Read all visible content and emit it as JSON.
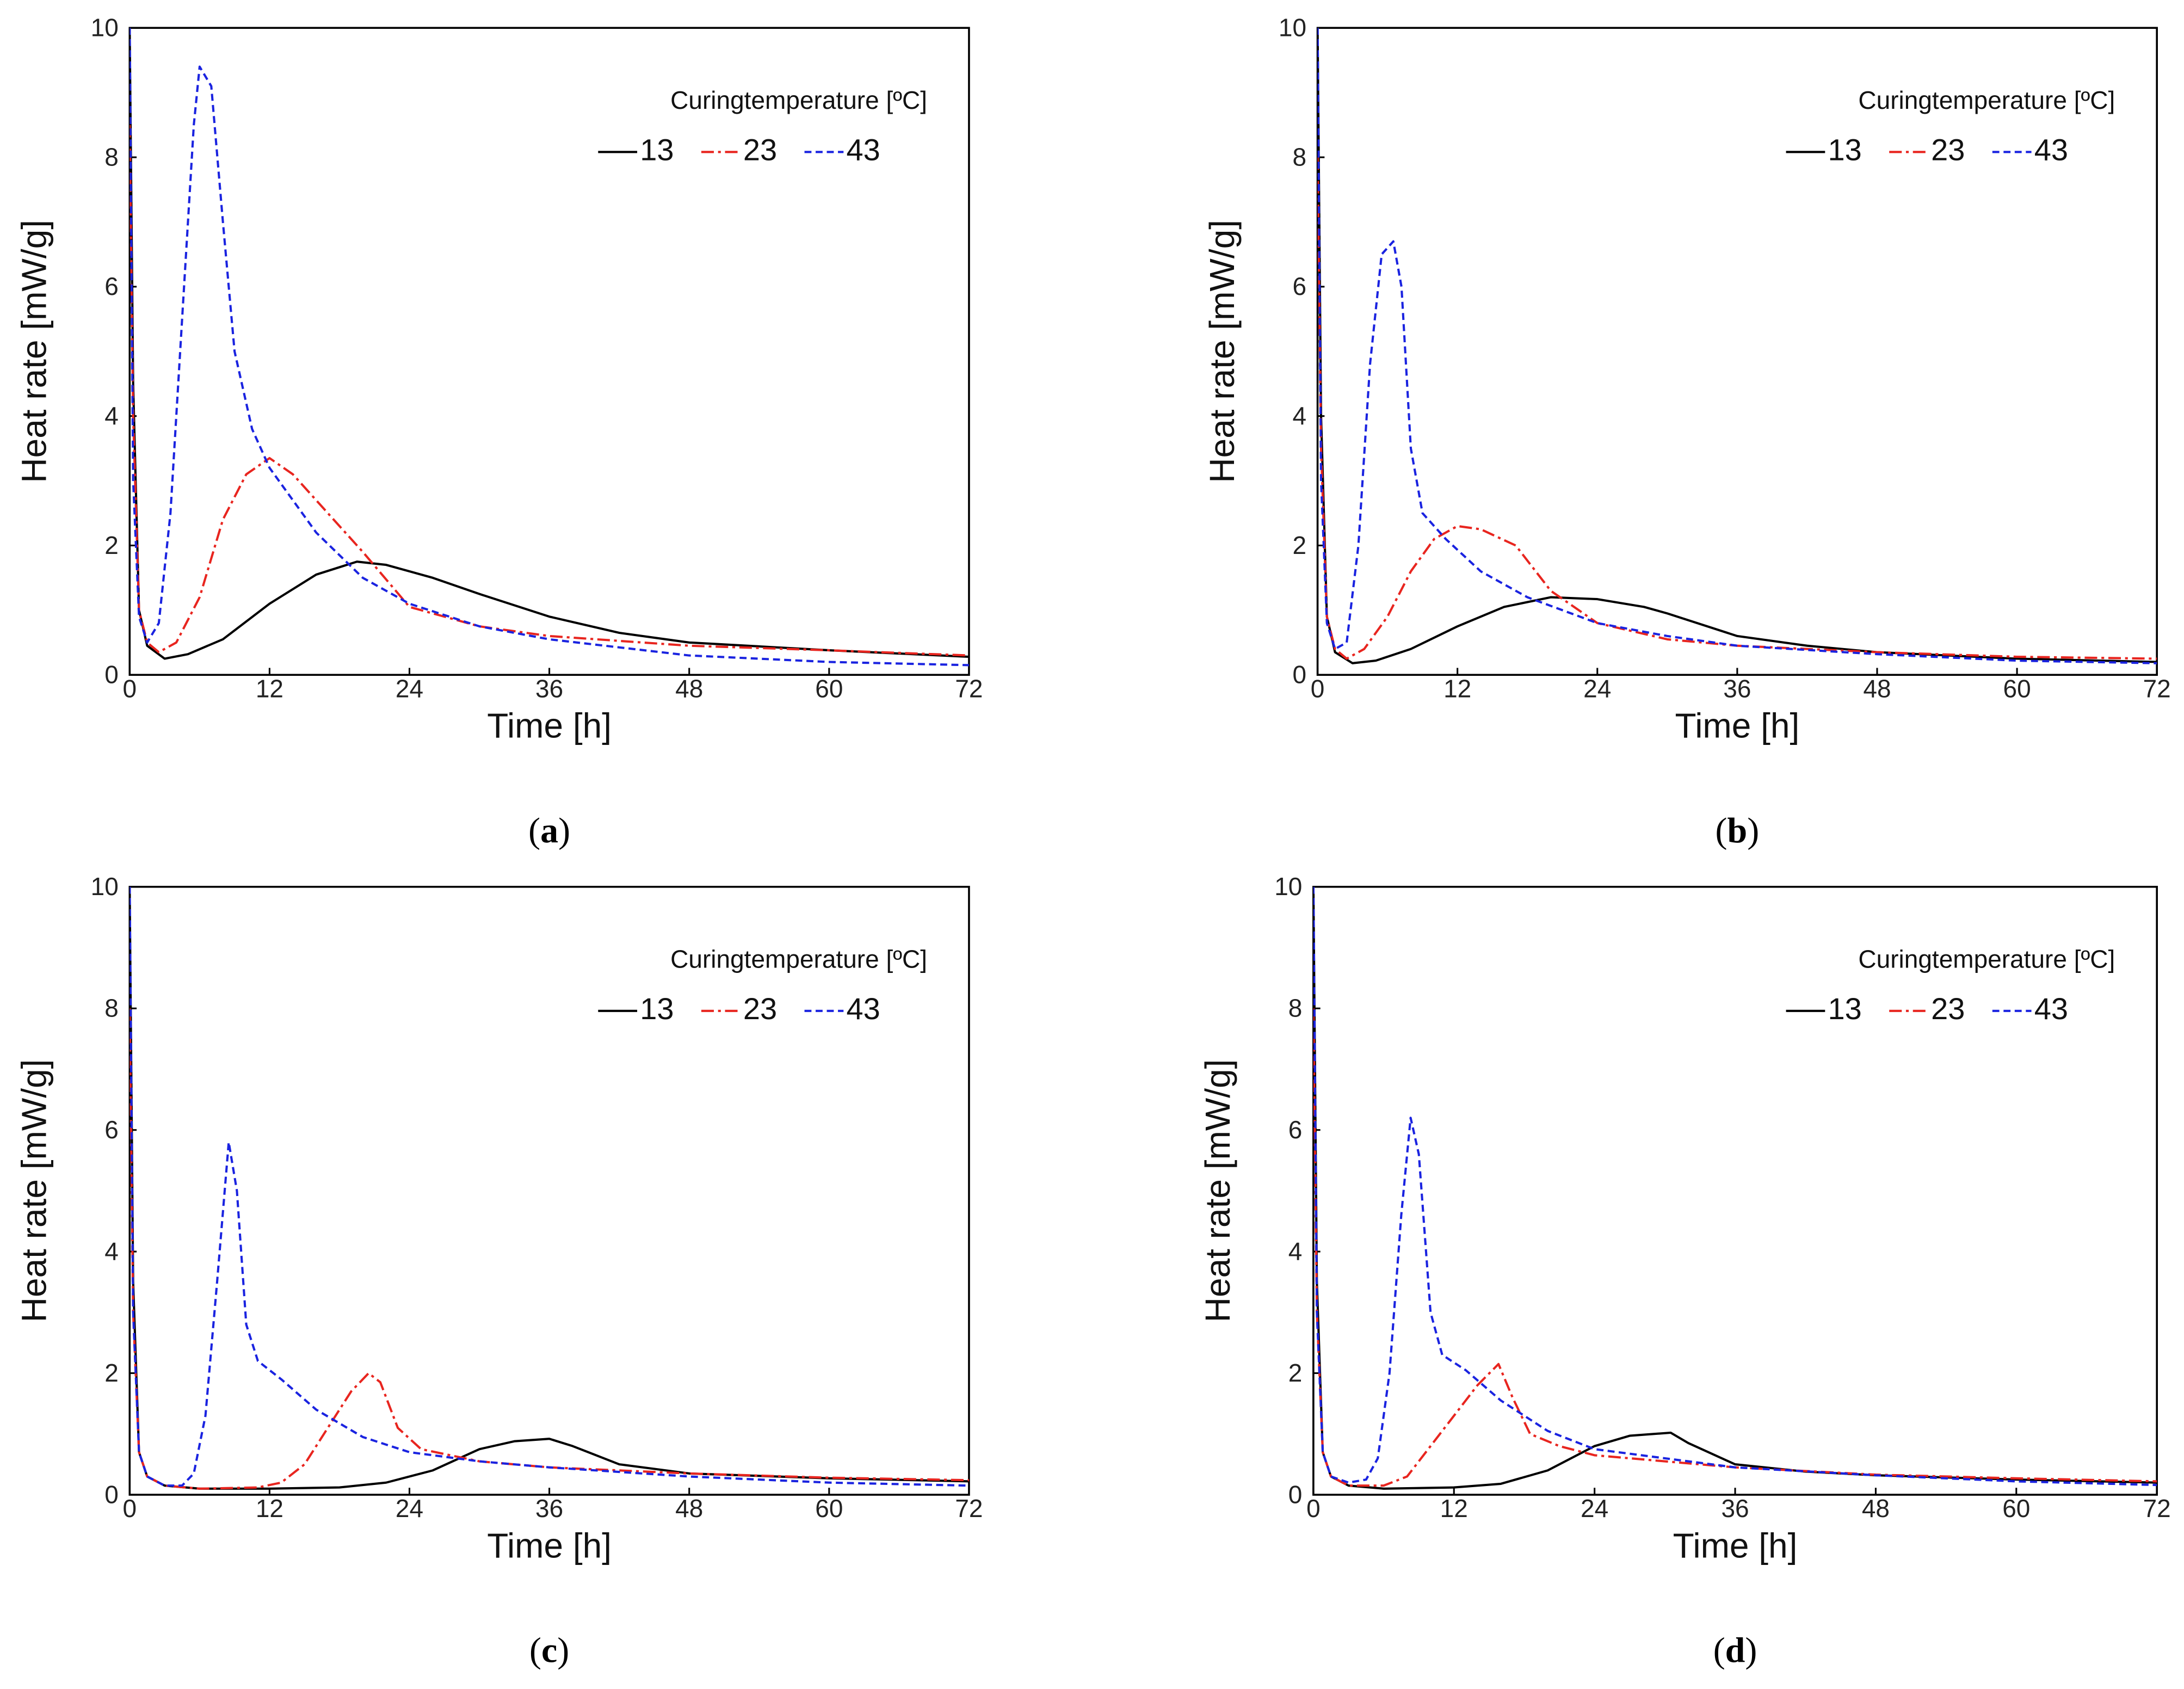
{
  "chart_data": [
    {
      "type": "line",
      "panel": "a",
      "caption": "a",
      "xlabel": "Time [h]",
      "ylabel": "Heat rate [mW/g]",
      "xlim": [
        0,
        72
      ],
      "ylim": [
        0,
        10
      ],
      "xticks": [
        0,
        12,
        24,
        36,
        48,
        60,
        72
      ],
      "yticks": [
        0,
        2,
        4,
        6,
        8,
        10
      ],
      "legend": {
        "title": "Curingtemperature [ºC]",
        "position": "top-right"
      },
      "series": [
        {
          "name": "13",
          "color": "#000000",
          "style": "solid",
          "points": [
            [
              0,
              10
            ],
            [
              0.3,
              4.5
            ],
            [
              0.8,
              1.0
            ],
            [
              1.5,
              0.45
            ],
            [
              3,
              0.25
            ],
            [
              5,
              0.32
            ],
            [
              8,
              0.55
            ],
            [
              12,
              1.1
            ],
            [
              16,
              1.55
            ],
            [
              19.5,
              1.75
            ],
            [
              22,
              1.7
            ],
            [
              26,
              1.5
            ],
            [
              30,
              1.25
            ],
            [
              36,
              0.9
            ],
            [
              42,
              0.65
            ],
            [
              48,
              0.5
            ],
            [
              60,
              0.38
            ],
            [
              72,
              0.28
            ]
          ]
        },
        {
          "name": "23",
          "color": "#e8251f",
          "style": "dashdot",
          "points": [
            [
              0,
              8.5
            ],
            [
              0.3,
              4.0
            ],
            [
              0.8,
              1.0
            ],
            [
              1.5,
              0.5
            ],
            [
              2.5,
              0.35
            ],
            [
              4,
              0.5
            ],
            [
              6,
              1.2
            ],
            [
              8,
              2.4
            ],
            [
              10,
              3.1
            ],
            [
              12,
              3.35
            ],
            [
              14,
              3.1
            ],
            [
              17,
              2.5
            ],
            [
              20,
              1.9
            ],
            [
              24,
              1.05
            ],
            [
              30,
              0.75
            ],
            [
              36,
              0.6
            ],
            [
              48,
              0.45
            ],
            [
              60,
              0.38
            ],
            [
              72,
              0.3
            ]
          ]
        },
        {
          "name": "43",
          "color": "#1a23e0",
          "style": "dashed",
          "points": [
            [
              0,
              10
            ],
            [
              0.3,
              3.0
            ],
            [
              0.8,
              0.9
            ],
            [
              1.5,
              0.5
            ],
            [
              2.5,
              0.8
            ],
            [
              3.5,
              2.5
            ],
            [
              4.5,
              5.5
            ],
            [
              5.5,
              8.5
            ],
            [
              6,
              9.4
            ],
            [
              7,
              9.1
            ],
            [
              8,
              7.0
            ],
            [
              9,
              5.0
            ],
            [
              10.5,
              3.8
            ],
            [
              12,
              3.2
            ],
            [
              16,
              2.2
            ],
            [
              20,
              1.5
            ],
            [
              24,
              1.1
            ],
            [
              30,
              0.75
            ],
            [
              36,
              0.55
            ],
            [
              48,
              0.3
            ],
            [
              60,
              0.2
            ],
            [
              72,
              0.15
            ]
          ]
        }
      ]
    },
    {
      "type": "line",
      "panel": "b",
      "caption": "b",
      "xlabel": "Time [h]",
      "ylabel": "Heat rate [mW/g]",
      "xlim": [
        0,
        72
      ],
      "ylim": [
        0,
        10
      ],
      "xticks": [
        0,
        12,
        24,
        36,
        48,
        60,
        72
      ],
      "yticks": [
        0,
        2,
        4,
        6,
        8,
        10
      ],
      "legend": {
        "title": "Curingtemperature [ºC]",
        "position": "top-right"
      },
      "series": [
        {
          "name": "13",
          "color": "#000000",
          "style": "solid",
          "points": [
            [
              0,
              10
            ],
            [
              0.3,
              4.0
            ],
            [
              0.8,
              0.9
            ],
            [
              1.5,
              0.35
            ],
            [
              3,
              0.18
            ],
            [
              5,
              0.22
            ],
            [
              8,
              0.4
            ],
            [
              12,
              0.75
            ],
            [
              16,
              1.05
            ],
            [
              20,
              1.2
            ],
            [
              24,
              1.17
            ],
            [
              28,
              1.05
            ],
            [
              30,
              0.95
            ],
            [
              36,
              0.6
            ],
            [
              42,
              0.45
            ],
            [
              48,
              0.35
            ],
            [
              60,
              0.25
            ],
            [
              72,
              0.2
            ]
          ]
        },
        {
          "name": "23",
          "color": "#e8251f",
          "style": "dashdot",
          "points": [
            [
              0,
              8.0
            ],
            [
              0.3,
              3.5
            ],
            [
              0.8,
              0.9
            ],
            [
              1.5,
              0.4
            ],
            [
              2.5,
              0.25
            ],
            [
              4,
              0.4
            ],
            [
              6,
              0.9
            ],
            [
              8,
              1.6
            ],
            [
              10,
              2.1
            ],
            [
              12,
              2.3
            ],
            [
              14,
              2.25
            ],
            [
              17,
              2.0
            ],
            [
              20,
              1.3
            ],
            [
              24,
              0.8
            ],
            [
              30,
              0.55
            ],
            [
              36,
              0.45
            ],
            [
              48,
              0.35
            ],
            [
              60,
              0.28
            ],
            [
              72,
              0.25
            ]
          ]
        },
        {
          "name": "43",
          "color": "#1a23e0",
          "style": "dashed",
          "points": [
            [
              0,
              10
            ],
            [
              0.3,
              3.0
            ],
            [
              0.8,
              0.8
            ],
            [
              1.5,
              0.4
            ],
            [
              2.5,
              0.5
            ],
            [
              3.5,
              2.0
            ],
            [
              4.5,
              4.8
            ],
            [
              5.5,
              6.5
            ],
            [
              6.5,
              6.7
            ],
            [
              7.2,
              6.0
            ],
            [
              8,
              3.5
            ],
            [
              9,
              2.5
            ],
            [
              11,
              2.1
            ],
            [
              14,
              1.6
            ],
            [
              18,
              1.2
            ],
            [
              24,
              0.8
            ],
            [
              30,
              0.6
            ],
            [
              36,
              0.45
            ],
            [
              48,
              0.32
            ],
            [
              60,
              0.22
            ],
            [
              72,
              0.18
            ]
          ]
        }
      ]
    },
    {
      "type": "line",
      "panel": "c",
      "caption": "c",
      "xlabel": "Time [h]",
      "ylabel": "Heat rate [mW/g]",
      "xlim": [
        0,
        72
      ],
      "ylim": [
        0,
        10
      ],
      "xticks": [
        0,
        12,
        24,
        36,
        48,
        60,
        72
      ],
      "yticks": [
        0,
        2,
        4,
        6,
        8,
        10
      ],
      "legend": {
        "title": "Curingtemperature [ºC]",
        "position": "top-right"
      },
      "series": [
        {
          "name": "13",
          "color": "#000000",
          "style": "solid",
          "points": [
            [
              0,
              10
            ],
            [
              0.3,
              3.5
            ],
            [
              0.8,
              0.7
            ],
            [
              1.5,
              0.3
            ],
            [
              3,
              0.15
            ],
            [
              6,
              0.1
            ],
            [
              12,
              0.1
            ],
            [
              18,
              0.12
            ],
            [
              22,
              0.2
            ],
            [
              26,
              0.4
            ],
            [
              30,
              0.75
            ],
            [
              33,
              0.88
            ],
            [
              36,
              0.92
            ],
            [
              38,
              0.8
            ],
            [
              42,
              0.5
            ],
            [
              48,
              0.35
            ],
            [
              60,
              0.27
            ],
            [
              72,
              0.22
            ]
          ]
        },
        {
          "name": "23",
          "color": "#e8251f",
          "style": "dashdot",
          "points": [
            [
              0,
              8.0
            ],
            [
              0.3,
              3.0
            ],
            [
              0.8,
              0.7
            ],
            [
              1.5,
              0.3
            ],
            [
              3,
              0.15
            ],
            [
              6,
              0.1
            ],
            [
              11,
              0.12
            ],
            [
              13,
              0.2
            ],
            [
              15,
              0.5
            ],
            [
              17,
              1.1
            ],
            [
              19,
              1.7
            ],
            [
              20.5,
              2.0
            ],
            [
              21.5,
              1.85
            ],
            [
              23,
              1.1
            ],
            [
              25,
              0.75
            ],
            [
              30,
              0.55
            ],
            [
              36,
              0.45
            ],
            [
              48,
              0.35
            ],
            [
              60,
              0.28
            ],
            [
              72,
              0.24
            ]
          ]
        },
        {
          "name": "43",
          "color": "#1a23e0",
          "style": "dashed",
          "points": [
            [
              0,
              10
            ],
            [
              0.3,
              3.0
            ],
            [
              0.8,
              0.7
            ],
            [
              1.5,
              0.3
            ],
            [
              3,
              0.15
            ],
            [
              4.5,
              0.15
            ],
            [
              5.5,
              0.35
            ],
            [
              6.5,
              1.3
            ],
            [
              7.5,
              3.5
            ],
            [
              8.5,
              5.8
            ],
            [
              9.2,
              5.0
            ],
            [
              10,
              2.8
            ],
            [
              11,
              2.2
            ],
            [
              13,
              1.9
            ],
            [
              16,
              1.4
            ],
            [
              20,
              0.95
            ],
            [
              24,
              0.7
            ],
            [
              30,
              0.55
            ],
            [
              36,
              0.45
            ],
            [
              48,
              0.3
            ],
            [
              60,
              0.2
            ],
            [
              72,
              0.15
            ]
          ]
        }
      ]
    },
    {
      "type": "line",
      "panel": "d",
      "caption": "d",
      "xlabel": "Time [h]",
      "ylabel": "Heat rate [mW/g]",
      "xlim": [
        0,
        72
      ],
      "ylim": [
        0,
        10
      ],
      "xticks": [
        0,
        12,
        24,
        36,
        48,
        60,
        72
      ],
      "yticks": [
        0,
        2,
        4,
        6,
        8,
        10
      ],
      "legend": {
        "title": "Curingtemperature [ºC]",
        "position": "top-right"
      },
      "series": [
        {
          "name": "13",
          "color": "#000000",
          "style": "solid",
          "points": [
            [
              0,
              10
            ],
            [
              0.3,
              3.5
            ],
            [
              0.8,
              0.7
            ],
            [
              1.5,
              0.3
            ],
            [
              3,
              0.15
            ],
            [
              6,
              0.1
            ],
            [
              12,
              0.12
            ],
            [
              16,
              0.18
            ],
            [
              20,
              0.4
            ],
            [
              24,
              0.8
            ],
            [
              27,
              0.97
            ],
            [
              30.5,
              1.02
            ],
            [
              32,
              0.85
            ],
            [
              36,
              0.5
            ],
            [
              42,
              0.38
            ],
            [
              48,
              0.32
            ],
            [
              60,
              0.25
            ],
            [
              72,
              0.2
            ]
          ]
        },
        {
          "name": "23",
          "color": "#e8251f",
          "style": "dashdot",
          "points": [
            [
              0,
              8.0
            ],
            [
              0.3,
              3.0
            ],
            [
              0.8,
              0.7
            ],
            [
              1.5,
              0.3
            ],
            [
              3,
              0.15
            ],
            [
              6,
              0.15
            ],
            [
              8,
              0.3
            ],
            [
              10,
              0.8
            ],
            [
              12,
              1.3
            ],
            [
              14,
              1.8
            ],
            [
              15.8,
              2.15
            ],
            [
              17,
              1.6
            ],
            [
              18.5,
              1.0
            ],
            [
              21,
              0.8
            ],
            [
              24,
              0.65
            ],
            [
              30,
              0.55
            ],
            [
              36,
              0.45
            ],
            [
              48,
              0.33
            ],
            [
              60,
              0.27
            ],
            [
              72,
              0.22
            ]
          ]
        },
        {
          "name": "43",
          "color": "#1a23e0",
          "style": "dashed",
          "points": [
            [
              0,
              10
            ],
            [
              0.3,
              3.0
            ],
            [
              0.8,
              0.7
            ],
            [
              1.5,
              0.3
            ],
            [
              3,
              0.2
            ],
            [
              4.5,
              0.25
            ],
            [
              5.5,
              0.6
            ],
            [
              6.5,
              2.0
            ],
            [
              7.5,
              4.6
            ],
            [
              8.3,
              6.2
            ],
            [
              9,
              5.6
            ],
            [
              10,
              3.0
            ],
            [
              11,
              2.3
            ],
            [
              13,
              2.05
            ],
            [
              16,
              1.55
            ],
            [
              20,
              1.05
            ],
            [
              24,
              0.75
            ],
            [
              30,
              0.6
            ],
            [
              36,
              0.45
            ],
            [
              48,
              0.32
            ],
            [
              60,
              0.22
            ],
            [
              72,
              0.16
            ]
          ]
        }
      ]
    }
  ]
}
